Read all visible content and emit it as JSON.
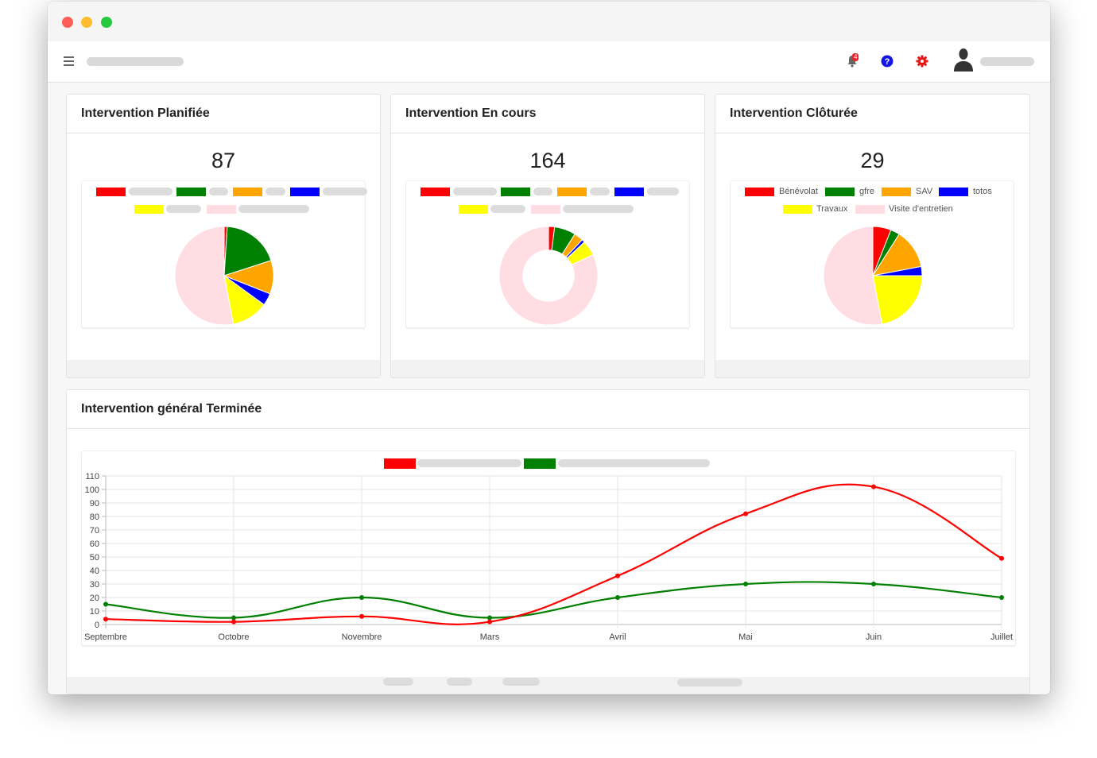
{
  "notifications": {
    "count": "4"
  },
  "colors": {
    "red": "#ff0000",
    "green": "#008000",
    "orange": "#ffa500",
    "blue": "#0000ff",
    "yellow": "#ffff00",
    "pink": "#ffdde3"
  },
  "cards": {
    "planned": {
      "title": "Intervention Planifiée",
      "count": "87"
    },
    "in_progress": {
      "title": "Intervention En cours",
      "count": "164"
    },
    "closed": {
      "title": "Intervention Clôturée",
      "count": "29",
      "legend": [
        "Bénévolat",
        "gfre",
        "SAV",
        "totos",
        "Travaux",
        "Visite d'entretien"
      ]
    },
    "general": {
      "title": "Intervention général Terminée"
    }
  },
  "chart_data": [
    {
      "type": "pie",
      "categories": [
        "",
        "",
        "",
        "",
        "",
        ""
      ],
      "values": [
        1,
        19,
        11,
        4,
        12,
        53
      ],
      "colors": [
        "#ff0000",
        "#008000",
        "#ffa500",
        "#0000ff",
        "#ffff00",
        "#ffdde3"
      ]
    },
    {
      "type": "pie",
      "donut": true,
      "categories": [
        "",
        "",
        "",
        "",
        "",
        ""
      ],
      "values": [
        2,
        7,
        3,
        1,
        5,
        82
      ],
      "colors": [
        "#ff0000",
        "#008000",
        "#ffa500",
        "#0000ff",
        "#ffff00",
        "#ffdde3"
      ]
    },
    {
      "type": "pie",
      "categories": [
        "Bénévolat",
        "gfre",
        "SAV",
        "totos",
        "Travaux",
        "Visite d'entretien"
      ],
      "values": [
        6,
        3,
        13,
        3,
        22,
        53
      ],
      "colors": [
        "#ff0000",
        "#008000",
        "#ffa500",
        "#0000ff",
        "#ffff00",
        "#ffdde3"
      ]
    },
    {
      "type": "line",
      "categories": [
        "Septembre",
        "Octobre",
        "Novembre",
        "Mars",
        "Avril",
        "Mai",
        "Juin",
        "Juillet"
      ],
      "series": [
        {
          "color": "#ff0000",
          "values": [
            4,
            2,
            6,
            2,
            36,
            82,
            102,
            49
          ]
        },
        {
          "color": "#008000",
          "values": [
            15,
            5,
            20,
            5,
            20,
            30,
            30,
            20
          ]
        }
      ],
      "ylim": [
        0,
        110
      ],
      "yticks": [
        0,
        10,
        20,
        30,
        40,
        50,
        60,
        70,
        80,
        90,
        100,
        110
      ],
      "grid": true
    }
  ]
}
